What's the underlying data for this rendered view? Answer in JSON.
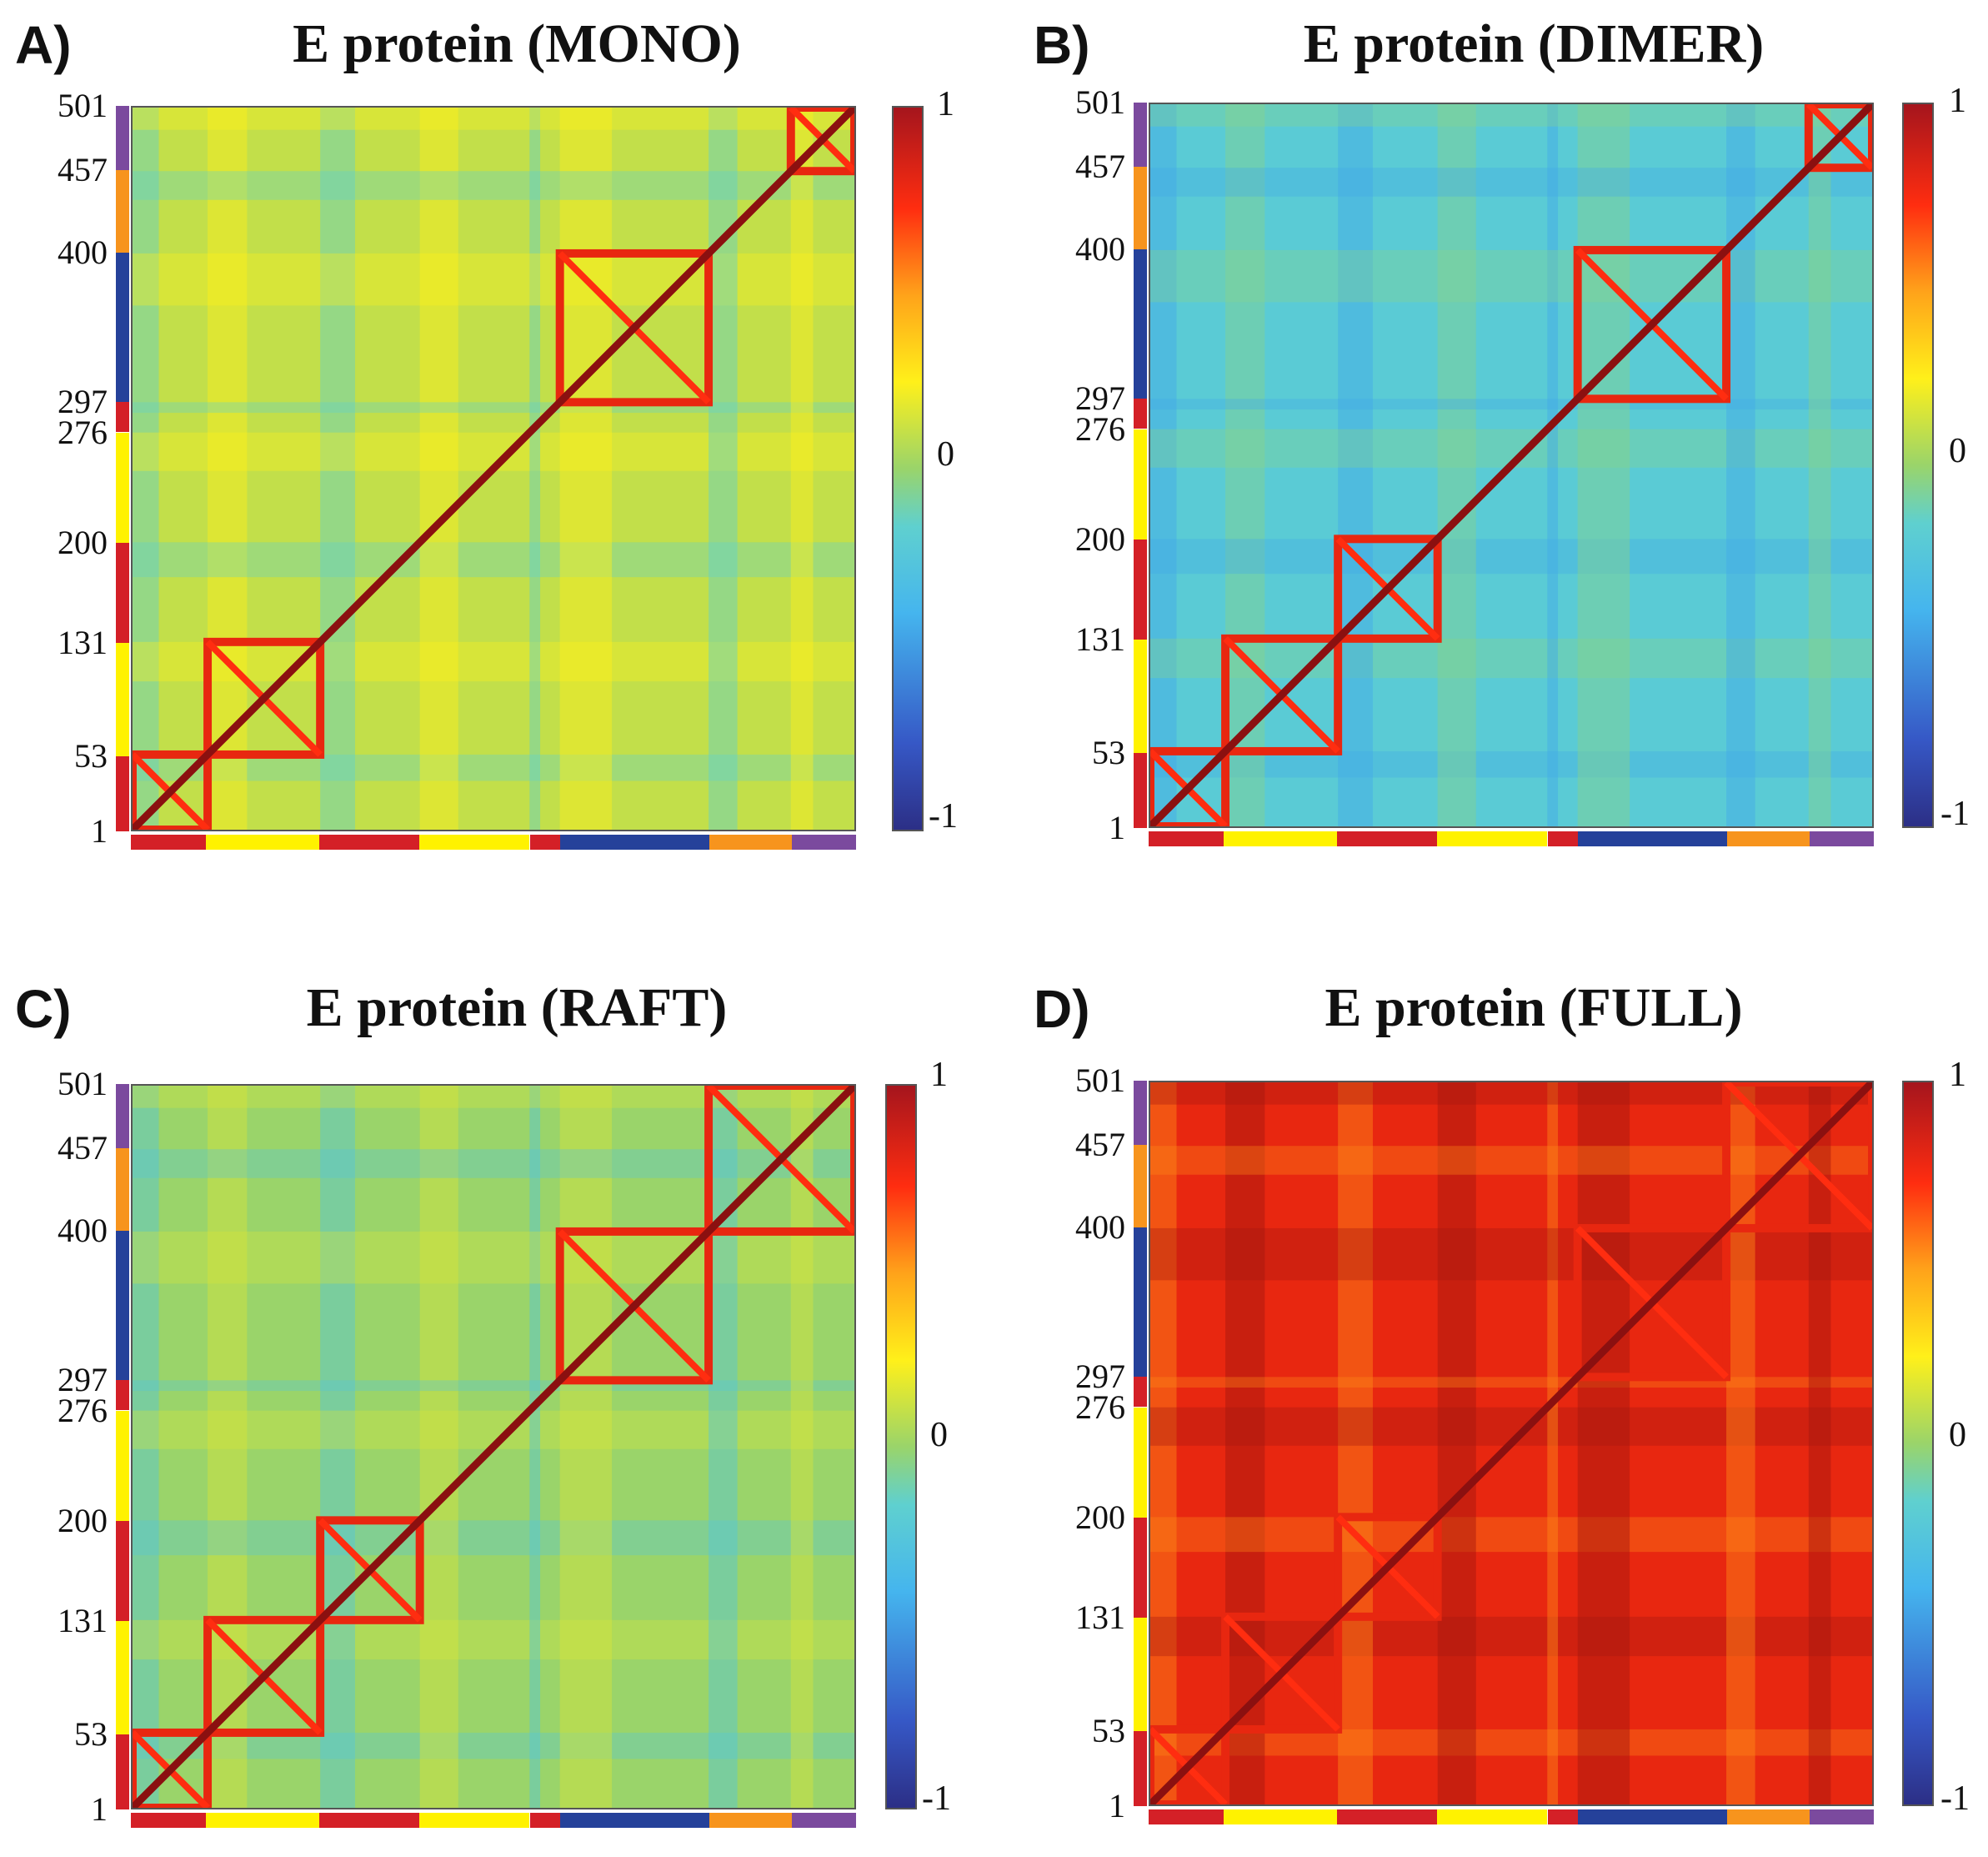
{
  "residue_ticks": [
    "1",
    "53",
    "131",
    "200",
    "276",
    "297",
    "400",
    "457",
    "501"
  ],
  "domain_segments": [
    {
      "start": 1,
      "end": 53,
      "color": "#d42027"
    },
    {
      "start": 53,
      "end": 131,
      "color": "#fff200"
    },
    {
      "start": 131,
      "end": 200,
      "color": "#d42027"
    },
    {
      "start": 200,
      "end": 276,
      "color": "#fff200"
    },
    {
      "start": 276,
      "end": 297,
      "color": "#d42027"
    },
    {
      "start": 297,
      "end": 400,
      "color": "#25419a"
    },
    {
      "start": 400,
      "end": 457,
      "color": "#f7941d"
    },
    {
      "start": 457,
      "end": 501,
      "color": "#7b4a9e"
    }
  ],
  "colorbar_labels": {
    "max": "1",
    "mid": "0",
    "min": "-1"
  },
  "colors": {
    "high": "#8b1010",
    "mid": "#fff01a",
    "low": "#2c2f86",
    "neutral": "#6fc6d4"
  },
  "panels": [
    {
      "id": "A",
      "letter": "A)",
      "title": "E protein (MONO)"
    },
    {
      "id": "B",
      "letter": "B)",
      "title": "E protein (DIMER)"
    },
    {
      "id": "C",
      "letter": "C)",
      "title": "E protein (RAFT)"
    },
    {
      "id": "D",
      "letter": "D)",
      "title": "E protein (FULL)"
    }
  ],
  "chart_data": [
    {
      "type": "heatmap",
      "title": "E protein (MONO)",
      "xlabel": "",
      "ylabel": "",
      "xlim": [
        1,
        501
      ],
      "ylim": [
        1,
        501
      ],
      "zlim": [
        -1,
        1
      ],
      "x_ticks": [
        "1",
        "53",
        "131",
        "200",
        "276",
        "297",
        "400",
        "457",
        "501"
      ],
      "y_ticks": [
        "1",
        "53",
        "131",
        "200",
        "276",
        "297",
        "400",
        "457",
        "501"
      ],
      "colorbar_ticks": [
        "-1",
        "0",
        "1"
      ],
      "diagonal_value": 1,
      "description_values": {
        "background": 0.1,
        "correlated_blocks": [
          [
            1,
            53
          ],
          [
            53,
            131
          ],
          [
            297,
            400
          ],
          [
            457,
            501
          ]
        ]
      }
    },
    {
      "type": "heatmap",
      "title": "E protein (DIMER)",
      "xlabel": "",
      "ylabel": "",
      "xlim": [
        1,
        501
      ],
      "ylim": [
        1,
        501
      ],
      "zlim": [
        -1,
        1
      ],
      "x_ticks": [
        "1",
        "53",
        "131",
        "200",
        "276",
        "297",
        "400",
        "457",
        "501"
      ],
      "y_ticks": [
        "1",
        "53",
        "131",
        "200",
        "276",
        "297",
        "400",
        "457",
        "501"
      ],
      "colorbar_ticks": [
        "-1",
        "0",
        "1"
      ],
      "diagonal_value": 1,
      "description_values": {
        "background": -0.2,
        "correlated_blocks": [
          [
            1,
            53
          ],
          [
            53,
            131
          ],
          [
            131,
            200
          ],
          [
            297,
            400
          ],
          [
            457,
            501
          ]
        ]
      }
    },
    {
      "type": "heatmap",
      "title": "E protein (RAFT)",
      "xlabel": "",
      "ylabel": "",
      "xlim": [
        1,
        501
      ],
      "ylim": [
        1,
        501
      ],
      "zlim": [
        -1,
        1
      ],
      "x_ticks": [
        "1",
        "53",
        "131",
        "200",
        "276",
        "297",
        "400",
        "457",
        "501"
      ],
      "y_ticks": [
        "1",
        "53",
        "131",
        "200",
        "276",
        "297",
        "400",
        "457",
        "501"
      ],
      "colorbar_ticks": [
        "-1",
        "0",
        "1"
      ],
      "diagonal_value": 1,
      "description_values": {
        "background": 0.0,
        "correlated_blocks": [
          [
            1,
            53
          ],
          [
            53,
            131
          ],
          [
            131,
            200
          ],
          [
            297,
            400
          ],
          [
            400,
            501
          ]
        ]
      }
    },
    {
      "type": "heatmap",
      "title": "E protein (FULL)",
      "xlabel": "",
      "ylabel": "",
      "xlim": [
        1,
        501
      ],
      "ylim": [
        1,
        501
      ],
      "zlim": [
        -1,
        1
      ],
      "x_ticks": [
        "1",
        "53",
        "131",
        "200",
        "276",
        "297",
        "400",
        "457",
        "501"
      ],
      "y_ticks": [
        "1",
        "53",
        "131",
        "200",
        "276",
        "297",
        "400",
        "457",
        "501"
      ],
      "colorbar_ticks": [
        "-1",
        "0",
        "1"
      ],
      "diagonal_value": 1,
      "description_values": {
        "background": 0.8,
        "correlated_blocks": [
          [
            1,
            53
          ],
          [
            53,
            131
          ],
          [
            131,
            200
          ],
          [
            297,
            400
          ],
          [
            400,
            501
          ]
        ]
      }
    }
  ]
}
